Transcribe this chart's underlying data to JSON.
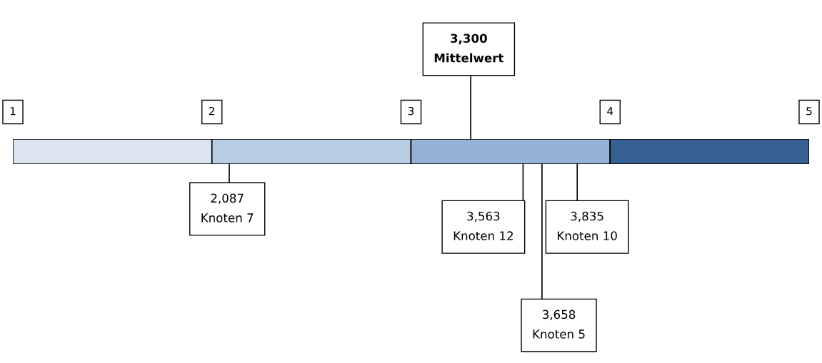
{
  "chart_data": {
    "type": "bar",
    "orientation": "horizontal",
    "categories": [
      null
    ],
    "series": [
      {
        "color": "#dce6f1",
        "base": [
          1
        ],
        "values": [
          1
        ]
      },
      {
        "color": "#b8cce4",
        "base": [
          2
        ],
        "values": [
          1
        ]
      },
      {
        "color": "#95b3d7",
        "base": [
          3
        ],
        "values": [
          1
        ]
      },
      {
        "color": "#366092",
        "base": [
          4
        ],
        "values": [
          1
        ]
      }
    ],
    "xlim": [
      1,
      5
    ],
    "xticks": [
      1,
      2,
      3,
      4,
      5
    ],
    "tick_labels": "x",
    "grid": false,
    "legend": false,
    "ref_lines": [
      {
        "axis": "x",
        "value": 3.3,
        "label": "3,300\nMittelwert",
        "color": "#000000"
      },
      {
        "axis": "x",
        "value": 2.087,
        "label": "2,087\nKnoten 7",
        "color": "#000000"
      },
      {
        "axis": "x",
        "value": 3.563,
        "label": "3,563\nKnoten 12",
        "color": "#000000"
      },
      {
        "axis": "x",
        "value": 3.658,
        "label": "3,658\nKnoten 5",
        "color": "#000000"
      },
      {
        "axis": "x",
        "value": 3.835,
        "label": "3,835\nKnoten 10",
        "color": "#000000"
      }
    ]
  }
}
